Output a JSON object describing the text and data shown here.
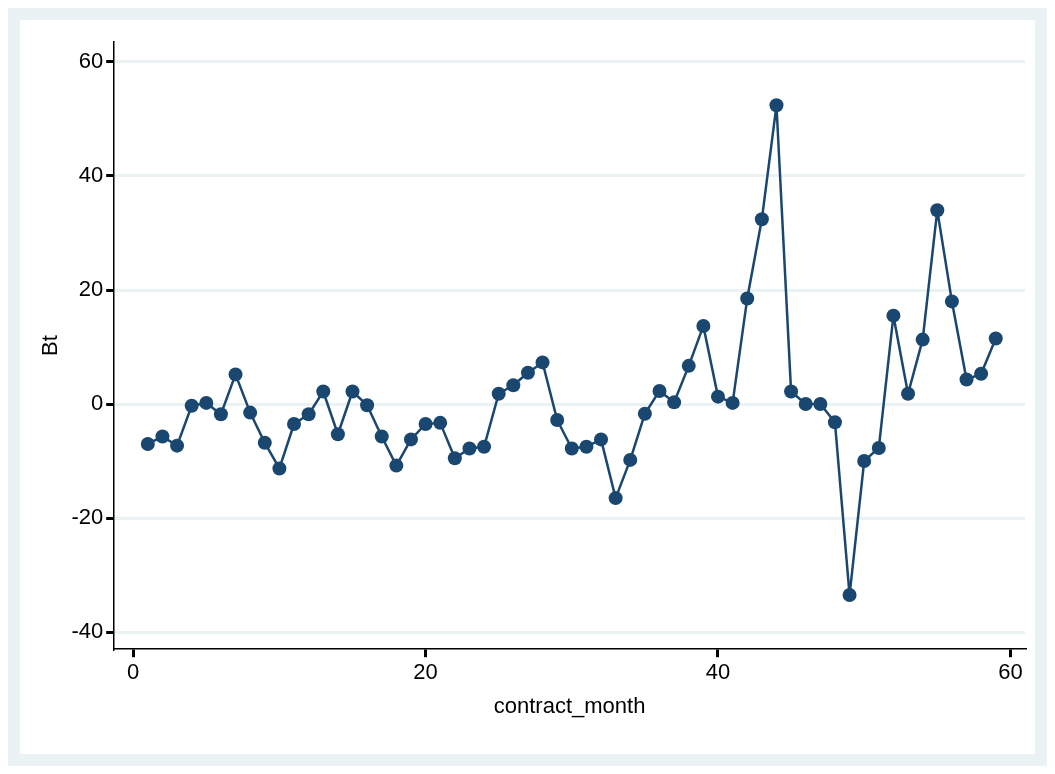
{
  "chart_data": {
    "type": "line",
    "xlabel": "contract_month",
    "ylabel": "Bt",
    "x": [
      1,
      2,
      3,
      4,
      5,
      6,
      7,
      8,
      9,
      10,
      11,
      12,
      13,
      14,
      15,
      16,
      17,
      18,
      19,
      20,
      21,
      22,
      23,
      24,
      25,
      26,
      27,
      28,
      29,
      30,
      31,
      32,
      33,
      34,
      35,
      36,
      37,
      38,
      39,
      40,
      41,
      42,
      43,
      44,
      45,
      46,
      47,
      48,
      49,
      50,
      51,
      52,
      53,
      54,
      55,
      56,
      57,
      58,
      59
    ],
    "series": [
      {
        "color": "#1a476f",
        "values": [
          -7.0,
          -5.7,
          -7.3,
          -0.3,
          0.2,
          -1.8,
          5.2,
          -1.5,
          -6.8,
          -11.3,
          -3.5,
          -1.8,
          2.2,
          -5.3,
          2.2,
          -0.2,
          -5.7,
          -10.8,
          -6.2,
          -3.5,
          -3.3,
          -9.5,
          -7.8,
          -7.5,
          1.8,
          3.3,
          5.5,
          7.3,
          -2.8,
          -7.8,
          -7.5,
          -6.2,
          -16.5,
          -9.8,
          -1.7,
          2.3,
          0.3,
          6.7,
          13.7,
          1.3,
          0.2,
          18.5,
          32.4,
          52.4,
          2.2,
          0,
          0,
          -3.2,
          -33.5,
          -10,
          -7.7,
          15.5,
          1.8,
          11.3,
          34,
          18,
          4.3,
          5.3,
          11.5
        ]
      }
    ],
    "xlim": [
      -1.3,
      61
    ],
    "xticks": [
      0,
      20,
      40,
      60
    ],
    "ylim": [
      -43,
      63.5
    ],
    "yticks": [
      -40,
      -20,
      0,
      20,
      40,
      60
    ],
    "grid": "y",
    "marker": "circle",
    "line_style": "solid",
    "legend": false
  }
}
